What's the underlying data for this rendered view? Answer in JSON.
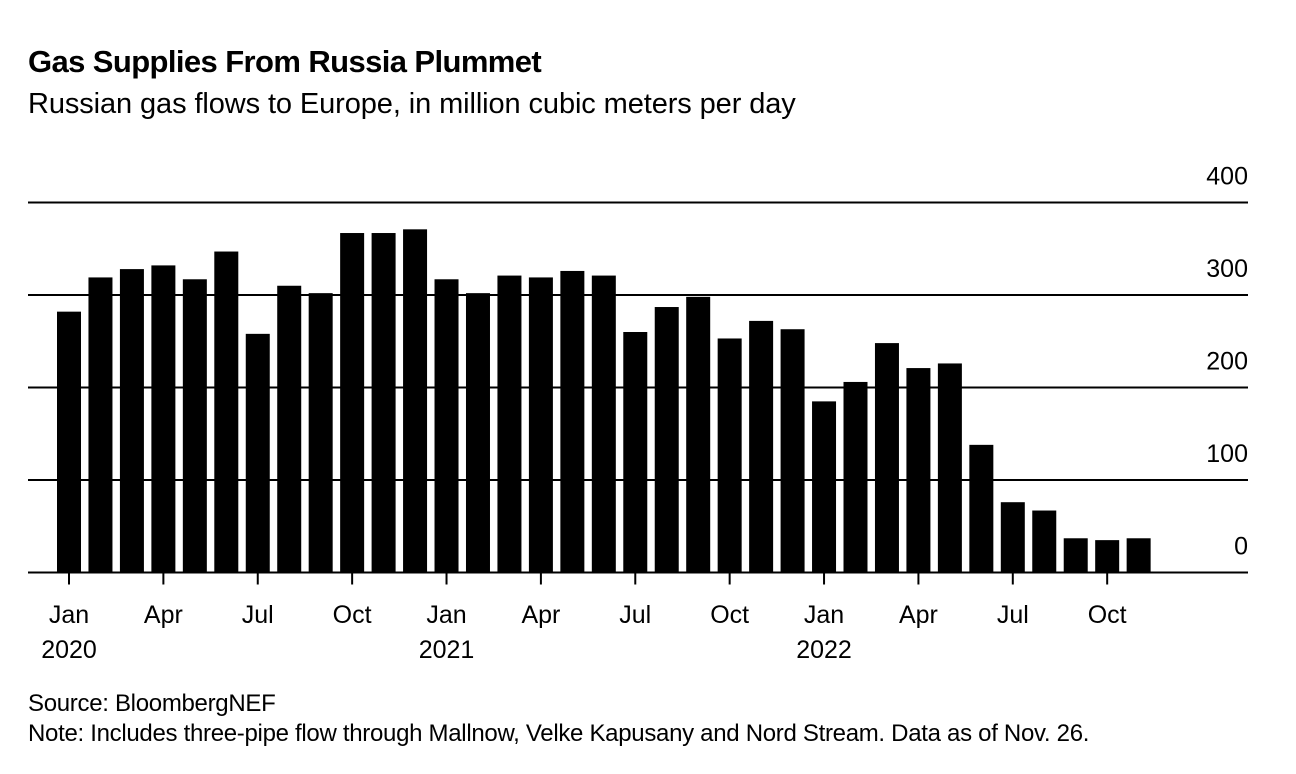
{
  "chart_data": {
    "type": "bar",
    "title": "Gas Supplies From Russia Plummet",
    "subtitle": "Russian gas flows to Europe, in million cubic meters per day",
    "xlabel": "",
    "ylabel": "million cubic meters per day",
    "ylim": [
      0,
      400
    ],
    "yticks": [
      0,
      100,
      200,
      300,
      400
    ],
    "ytick_labels": [
      "0",
      "100",
      "200",
      "300",
      "400"
    ],
    "y_axis_position": "right",
    "grid": true,
    "legend": "none",
    "bar_color": "#000000",
    "categories": [
      "2020-01",
      "2020-02",
      "2020-03",
      "2020-04",
      "2020-05",
      "2020-06",
      "2020-07",
      "2020-08",
      "2020-09",
      "2020-10",
      "2020-11",
      "2020-12",
      "2021-01",
      "2021-02",
      "2021-03",
      "2021-04",
      "2021-05",
      "2021-06",
      "2021-07",
      "2021-08",
      "2021-09",
      "2021-10",
      "2021-11",
      "2021-12",
      "2022-01",
      "2022-02",
      "2022-03",
      "2022-04",
      "2022-05",
      "2022-06",
      "2022-07",
      "2022-08",
      "2022-09",
      "2022-10",
      "2022-11"
    ],
    "values": [
      282,
      319,
      328,
      332,
      317,
      347,
      258,
      310,
      302,
      367,
      367,
      371,
      317,
      302,
      321,
      319,
      326,
      321,
      260,
      287,
      298,
      253,
      272,
      263,
      185,
      206,
      248,
      221,
      226,
      138,
      76,
      67,
      37,
      35,
      37
    ],
    "xticks": [
      {
        "index": 0,
        "month": "Jan",
        "year": "2020"
      },
      {
        "index": 3,
        "month": "Apr",
        "year": ""
      },
      {
        "index": 6,
        "month": "Jul",
        "year": ""
      },
      {
        "index": 9,
        "month": "Oct",
        "year": ""
      },
      {
        "index": 12,
        "month": "Jan",
        "year": "2021"
      },
      {
        "index": 15,
        "month": "Apr",
        "year": ""
      },
      {
        "index": 18,
        "month": "Jul",
        "year": ""
      },
      {
        "index": 21,
        "month": "Oct",
        "year": ""
      },
      {
        "index": 24,
        "month": "Jan",
        "year": "2022"
      },
      {
        "index": 27,
        "month": "Apr",
        "year": ""
      },
      {
        "index": 30,
        "month": "Jul",
        "year": ""
      },
      {
        "index": 33,
        "month": "Oct",
        "year": ""
      }
    ]
  },
  "footer": {
    "source": "Source: BloombergNEF",
    "note": "Note: Includes three-pipe flow through Mallnow, Velke Kapusany and Nord Stream. Data as of Nov. 26."
  }
}
